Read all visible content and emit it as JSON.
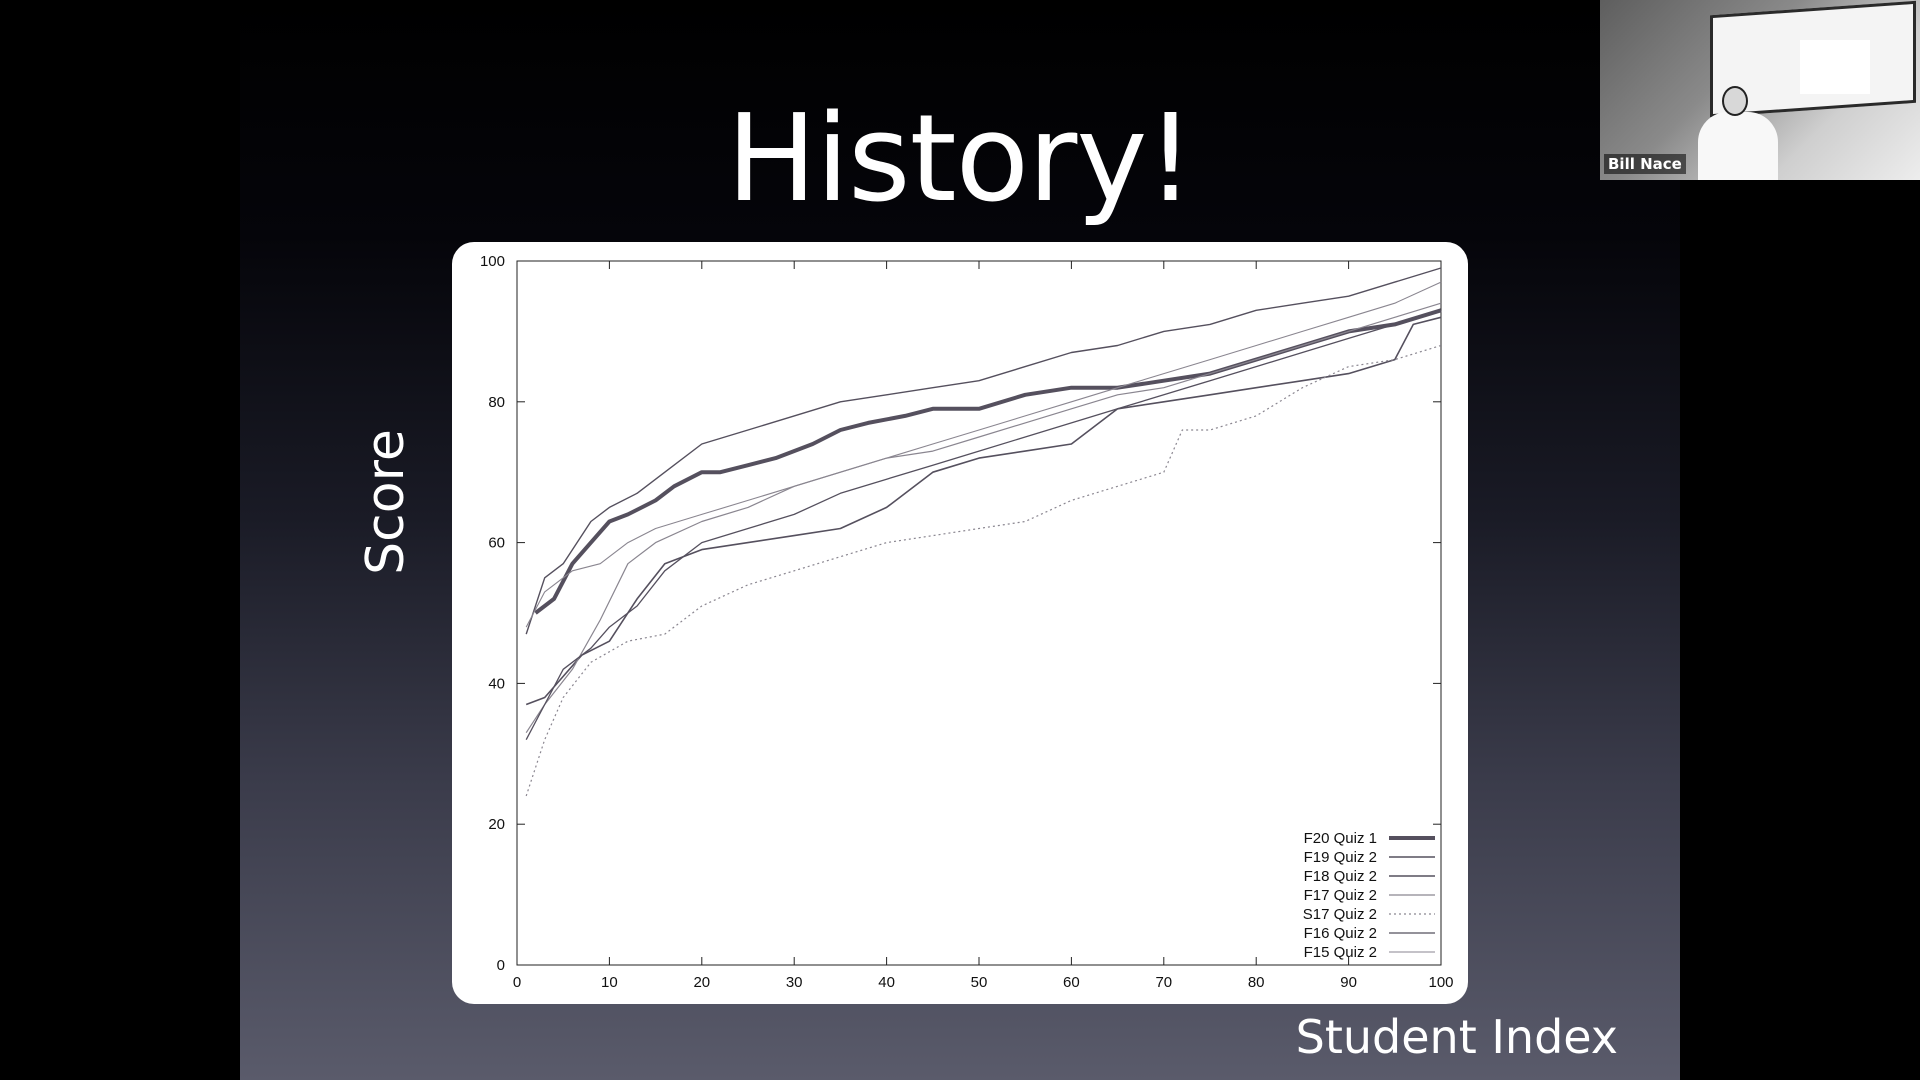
{
  "slide": {
    "title": "History!",
    "y_title": "Score",
    "x_title": "Student Index"
  },
  "webcam": {
    "participant_name": "Bill Nace"
  },
  "chart_data": {
    "type": "line",
    "title": "",
    "xlabel": "Student Index",
    "ylabel": "Score",
    "xlim": [
      0,
      100
    ],
    "ylim": [
      0,
      100
    ],
    "x_ticks": [
      0,
      10,
      20,
      30,
      40,
      50,
      60,
      70,
      80,
      90,
      100
    ],
    "y_ticks": [
      0,
      20,
      40,
      60,
      80,
      100
    ],
    "grid": false,
    "legend_position": "bottom-right",
    "series": [
      {
        "name": "F20 Quiz 1",
        "color": "#55505e",
        "width": 4,
        "dash": "",
        "x": [
          2,
          4,
          6,
          8,
          10,
          12,
          15,
          17,
          20,
          22,
          25,
          28,
          32,
          35,
          38,
          42,
          45,
          50,
          55,
          60,
          65,
          70,
          75,
          80,
          85,
          90,
          95,
          100
        ],
        "y": [
          50,
          52,
          57,
          60,
          63,
          64,
          66,
          68,
          70,
          70,
          71,
          72,
          74,
          76,
          77,
          78,
          79,
          79,
          81,
          82,
          82,
          83,
          84,
          86,
          88,
          90,
          91,
          93
        ]
      },
      {
        "name": "F19 Quiz 2",
        "color": "#55505e",
        "width": 1.6,
        "dash": "",
        "x": [
          1,
          3,
          5,
          7,
          10,
          13,
          16,
          20,
          25,
          30,
          35,
          40,
          45,
          50,
          55,
          60,
          65,
          70,
          75,
          80,
          85,
          90,
          95,
          97,
          100
        ],
        "y": [
          37,
          38,
          41,
          44,
          46,
          52,
          57,
          59,
          60,
          61,
          62,
          65,
          70,
          72,
          73,
          74,
          79,
          80,
          81,
          82,
          83,
          84,
          86,
          91,
          92
        ]
      },
      {
        "name": "F18 Quiz 2",
        "color": "#55505e",
        "width": 1.4,
        "dash": "",
        "x": [
          1,
          3,
          5,
          8,
          10,
          13,
          16,
          20,
          25,
          30,
          35,
          40,
          45,
          50,
          55,
          60,
          65,
          70,
          75,
          80,
          85,
          90,
          95,
          100
        ],
        "y": [
          47,
          55,
          57,
          63,
          65,
          67,
          70,
          74,
          76,
          78,
          80,
          81,
          82,
          83,
          85,
          87,
          88,
          90,
          91,
          93,
          94,
          95,
          97,
          99
        ]
      },
      {
        "name": "F17 Quiz 2",
        "color": "#8a8690",
        "width": 1.2,
        "dash": "",
        "x": [
          1,
          3,
          6,
          9,
          12,
          15,
          20,
          25,
          30,
          35,
          40,
          45,
          50,
          55,
          60,
          65,
          70,
          75,
          80,
          85,
          90,
          95,
          100
        ],
        "y": [
          33,
          37,
          42,
          49,
          57,
          60,
          63,
          65,
          68,
          70,
          72,
          73,
          75,
          77,
          79,
          81,
          82,
          84,
          86,
          88,
          90,
          92,
          94
        ]
      },
      {
        "name": "S17 Quiz 2",
        "color": "#8a8690",
        "width": 1.2,
        "dash": "2,3",
        "x": [
          1,
          3,
          5,
          8,
          12,
          16,
          20,
          25,
          30,
          35,
          40,
          45,
          50,
          55,
          60,
          65,
          70,
          72,
          75,
          80,
          85,
          90,
          95,
          100
        ],
        "y": [
          24,
          32,
          38,
          43,
          46,
          47,
          51,
          54,
          56,
          58,
          60,
          61,
          62,
          63,
          66,
          68,
          70,
          76,
          76,
          78,
          82,
          85,
          86,
          88
        ]
      },
      {
        "name": "F16 Quiz 2",
        "color": "#55505e",
        "width": 1.3,
        "dash": "",
        "x": [
          1,
          3,
          5,
          8,
          10,
          13,
          16,
          20,
          25,
          30,
          35,
          40,
          45,
          50,
          55,
          60,
          65,
          70,
          75,
          80,
          85,
          90,
          95,
          100
        ],
        "y": [
          32,
          37,
          42,
          45,
          48,
          51,
          56,
          60,
          62,
          64,
          67,
          69,
          71,
          73,
          75,
          77,
          79,
          81,
          83,
          85,
          87,
          89,
          91,
          93
        ]
      },
      {
        "name": "F15 Quiz 2",
        "color": "#8a8690",
        "width": 1.1,
        "dash": "",
        "x": [
          1,
          3,
          6,
          9,
          12,
          15,
          20,
          25,
          30,
          35,
          40,
          45,
          50,
          55,
          60,
          65,
          70,
          75,
          80,
          85,
          90,
          95,
          100
        ],
        "y": [
          48,
          53,
          56,
          57,
          60,
          62,
          64,
          66,
          68,
          70,
          72,
          74,
          76,
          78,
          80,
          82,
          84,
          86,
          88,
          90,
          92,
          94,
          97
        ]
      }
    ]
  }
}
